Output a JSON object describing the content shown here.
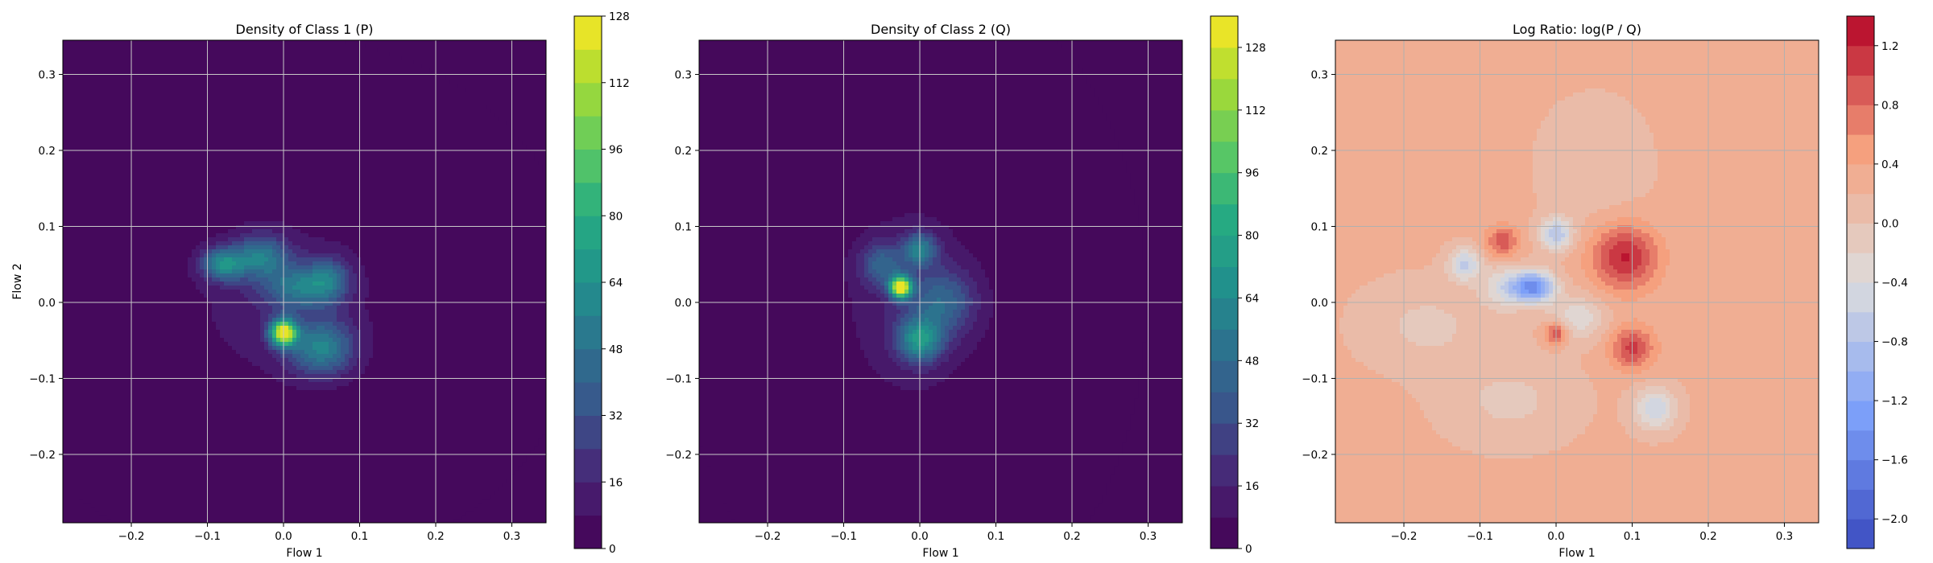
{
  "chart_data": [
    {
      "type": "heatmap",
      "title": "Density of Class 1 (P)",
      "xlabel": "Flow 1",
      "ylabel": "Flow 2",
      "xlim": [
        -0.29,
        0.345
      ],
      "ylim": [
        -0.29,
        0.345
      ],
      "xticks": [
        -0.2,
        -0.1,
        0.0,
        0.1,
        0.2,
        0.3
      ],
      "xtick_labels": [
        "−0.2",
        "−0.1",
        "0.0",
        "0.1",
        "0.2",
        "0.3"
      ],
      "yticks": [
        -0.2,
        -0.1,
        0.0,
        0.1,
        0.2,
        0.3
      ],
      "ytick_labels": [
        "−0.2",
        "−0.1",
        "0.0",
        "0.1",
        "0.2",
        "0.3"
      ],
      "grid": true,
      "colormap": "viridis",
      "colorbar": {
        "min": 0,
        "max": 128,
        "levels": 16,
        "ticks": [
          0,
          16,
          32,
          48,
          64,
          80,
          96,
          112,
          128
        ],
        "tick_labels": [
          "0",
          "16",
          "32",
          "48",
          "64",
          "80",
          "96",
          "112",
          "128"
        ]
      },
      "density_blobs": [
        {
          "x": 0.0,
          "y": -0.04,
          "sx": 0.012,
          "sy": 0.012,
          "peak": 120
        },
        {
          "x": -0.08,
          "y": 0.05,
          "sx": 0.02,
          "sy": 0.015,
          "peak": 55
        },
        {
          "x": -0.03,
          "y": 0.06,
          "sx": 0.025,
          "sy": 0.02,
          "peak": 45
        },
        {
          "x": 0.02,
          "y": 0.02,
          "sx": 0.03,
          "sy": 0.02,
          "peak": 40
        },
        {
          "x": 0.05,
          "y": -0.06,
          "sx": 0.03,
          "sy": 0.025,
          "peak": 50
        },
        {
          "x": 0.06,
          "y": 0.03,
          "sx": 0.02,
          "sy": 0.02,
          "peak": 35
        },
        {
          "x": 0.0,
          "y": 0.0,
          "sx": 0.09,
          "sy": 0.08,
          "peak": 14
        }
      ]
    },
    {
      "type": "heatmap",
      "title": "Density of Class 2 (Q)",
      "xlabel": "Flow 1",
      "ylabel": "",
      "xlim": [
        -0.29,
        0.345
      ],
      "ylim": [
        -0.29,
        0.345
      ],
      "xticks": [
        -0.2,
        -0.1,
        0.0,
        0.1,
        0.2,
        0.3
      ],
      "xtick_labels": [
        "−0.2",
        "−0.1",
        "0.0",
        "0.1",
        "0.2",
        "0.3"
      ],
      "yticks": [
        -0.2,
        -0.1,
        0.0,
        0.1,
        0.2,
        0.3
      ],
      "ytick_labels": [
        "−0.2",
        "−0.1",
        "0.0",
        "0.1",
        "0.2",
        "0.3"
      ],
      "grid": true,
      "colormap": "viridis",
      "colorbar": {
        "min": 0,
        "max": 136,
        "levels": 17,
        "ticks": [
          0,
          16,
          32,
          48,
          64,
          80,
          96,
          112,
          128
        ],
        "tick_labels": [
          "0",
          "16",
          "32",
          "48",
          "64",
          "80",
          "96",
          "112",
          "128"
        ]
      },
      "density_blobs": [
        {
          "x": -0.025,
          "y": 0.02,
          "sx": 0.01,
          "sy": 0.01,
          "peak": 130
        },
        {
          "x": 0.0,
          "y": -0.05,
          "sx": 0.02,
          "sy": 0.02,
          "peak": 60
        },
        {
          "x": 0.0,
          "y": 0.07,
          "sx": 0.015,
          "sy": 0.015,
          "peak": 50
        },
        {
          "x": -0.05,
          "y": 0.05,
          "sx": 0.02,
          "sy": 0.02,
          "peak": 35
        },
        {
          "x": 0.03,
          "y": 0.0,
          "sx": 0.03,
          "sy": 0.03,
          "peak": 35
        },
        {
          "x": -0.01,
          "y": 0.0,
          "sx": 0.07,
          "sy": 0.1,
          "peak": 15
        }
      ]
    },
    {
      "type": "heatmap",
      "title": "Log Ratio: log(P / Q)",
      "xlabel": "Flow 1",
      "ylabel": "",
      "xlim": [
        -0.29,
        0.345
      ],
      "ylim": [
        -0.29,
        0.345
      ],
      "xticks": [
        -0.2,
        -0.1,
        0.0,
        0.1,
        0.2,
        0.3
      ],
      "xtick_labels": [
        "−0.2",
        "−0.1",
        "0.0",
        "0.1",
        "0.2",
        "0.3"
      ],
      "yticks": [
        -0.2,
        -0.1,
        0.0,
        0.1,
        0.2,
        0.3
      ],
      "ytick_labels": [
        "−0.2",
        "−0.1",
        "0.0",
        "0.1",
        "0.2",
        "0.3"
      ],
      "grid": true,
      "colormap": "coolwarm",
      "colorbar": {
        "min": -2.2,
        "max": 1.4,
        "levels": 18,
        "ticks": [
          -2.0,
          -1.6,
          -1.2,
          -0.8,
          -0.4,
          0.0,
          0.4,
          0.8,
          1.2
        ],
        "tick_labels": [
          "−2.0",
          "−1.6",
          "−1.2",
          "−0.8",
          "−0.4",
          "0.0",
          "0.4",
          "0.8",
          "1.2"
        ]
      },
      "background": 0.25,
      "ratio_blobs": [
        {
          "x": -0.03,
          "y": 0.02,
          "sx": 0.02,
          "sy": 0.015,
          "v": -1.7
        },
        {
          "x": -0.12,
          "y": 0.05,
          "sx": 0.015,
          "sy": 0.015,
          "v": -0.9
        },
        {
          "x": 0.0,
          "y": 0.09,
          "sx": 0.015,
          "sy": 0.015,
          "v": -1.0
        },
        {
          "x": 0.13,
          "y": -0.14,
          "sx": 0.02,
          "sy": 0.02,
          "v": -0.8
        },
        {
          "x": 0.03,
          "y": -0.02,
          "sx": 0.025,
          "sy": 0.02,
          "v": -0.6
        },
        {
          "x": 0.09,
          "y": 0.06,
          "sx": 0.03,
          "sy": 0.03,
          "v": 1.0
        },
        {
          "x": 0.1,
          "y": -0.06,
          "sx": 0.02,
          "sy": 0.02,
          "v": 0.8
        },
        {
          "x": -0.07,
          "y": 0.08,
          "sx": 0.015,
          "sy": 0.015,
          "v": 0.7
        },
        {
          "x": 0.0,
          "y": -0.04,
          "sx": 0.01,
          "sy": 0.01,
          "v": 0.9
        },
        {
          "x": -0.07,
          "y": 0.02,
          "sx": 0.02,
          "sy": 0.02,
          "v": -0.6
        },
        {
          "x": -0.06,
          "y": -0.13,
          "sx": 0.06,
          "sy": 0.04,
          "v": -0.3
        },
        {
          "x": -0.17,
          "y": -0.03,
          "sx": 0.06,
          "sy": 0.04,
          "v": -0.3
        },
        {
          "x": 0.05,
          "y": 0.18,
          "sx": 0.05,
          "sy": 0.06,
          "v": -0.2
        }
      ]
    }
  ]
}
